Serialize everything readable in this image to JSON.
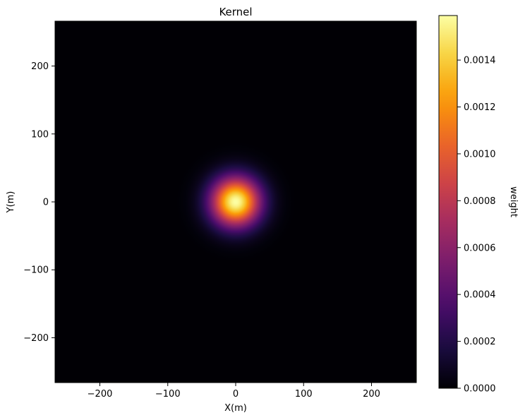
{
  "chart_data": {
    "type": "heatmap",
    "title": "Kernel",
    "xlabel": "X(m)",
    "ylabel": "Y(m)",
    "xlim": [
      -266,
      266
    ],
    "ylim": [
      -266,
      266
    ],
    "xticks": [
      -200,
      -100,
      0,
      100,
      200
    ],
    "yticks": [
      -200,
      -100,
      0,
      100,
      200
    ],
    "xtick_labels": [
      "−200",
      "−100",
      "0",
      "100",
      "200"
    ],
    "ytick_labels": [
      "−200",
      "−100",
      "0",
      "100",
      "200"
    ],
    "kernel": {
      "shape": "gaussian",
      "center": [
        0,
        0
      ],
      "sigma_m": 25,
      "peak_weight": 0.00159
    },
    "colormap": "inferno",
    "colormap_colors": [
      "#000004",
      "#1b0c41",
      "#4a0c6b",
      "#781c6d",
      "#a52c60",
      "#cf4446",
      "#ed6925",
      "#fb9b06",
      "#f7d13d",
      "#fcffa4"
    ],
    "colorbar": {
      "label": "weight",
      "range": [
        0,
        0.00159
      ],
      "ticks": [
        0,
        0.0002,
        0.0004,
        0.0006,
        0.0008,
        0.001,
        0.0012,
        0.0014
      ],
      "tick_labels": [
        "0.0000",
        "0.0002",
        "0.0004",
        "0.0006",
        "0.0008",
        "0.0010",
        "0.0012",
        "0.0014"
      ]
    },
    "grid": false
  }
}
